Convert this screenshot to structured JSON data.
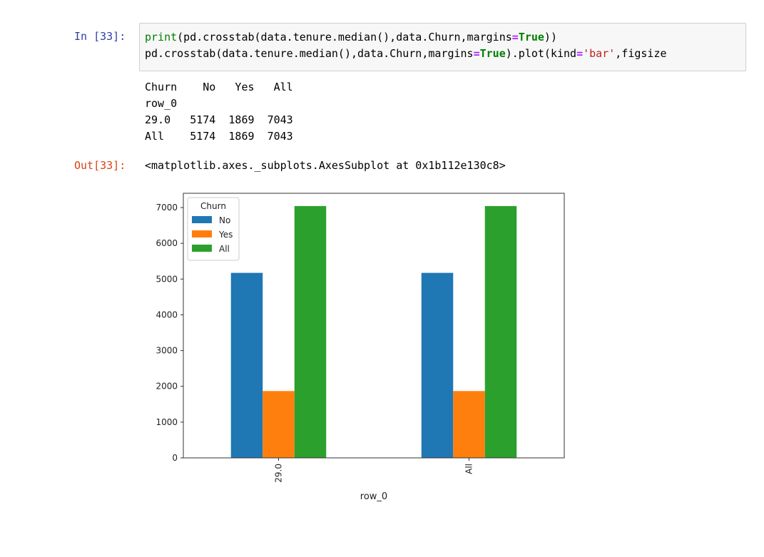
{
  "input_cell": {
    "prompt": "In [33]:",
    "code_line1": {
      "p1": "print",
      "p2": "(pd.crosstab(data.tenure.median(),data.Churn,margins",
      "p3": "=",
      "p4": "True",
      "p5": "))"
    },
    "code_line2": {
      "p1": "pd.crosstab(data.tenure.median(),data.Churn,margins",
      "p2": "=",
      "p3": "True",
      "p4": ").plot(kind",
      "p5": "=",
      "p6": "'bar'",
      "p7": ",figsize"
    }
  },
  "stdout": {
    "line1": "Churn    No   Yes   All",
    "line2": "row_0",
    "line3": "29.0   5174  1869  7043",
    "line4": "All    5174  1869  7043"
  },
  "output_cell": {
    "prompt": "Out[33]:",
    "repr": "<matplotlib.axes._subplots.AxesSubplot at 0x1b112e130c8>"
  },
  "chart_data": {
    "type": "bar",
    "categories": [
      "29.0",
      "All"
    ],
    "series": [
      {
        "name": "No",
        "values": [
          5174,
          5174
        ],
        "color": "#1f77b4"
      },
      {
        "name": "Yes",
        "values": [
          1869,
          1869
        ],
        "color": "#ff7f0e"
      },
      {
        "name": "All",
        "values": [
          7043,
          7043
        ],
        "color": "#2ca02c"
      }
    ],
    "xlabel": "row_0",
    "ylabel": "",
    "ylim": [
      0,
      7400
    ],
    "yticks": [
      0,
      1000,
      2000,
      3000,
      4000,
      5000,
      6000,
      7000
    ],
    "legend_title": "Churn",
    "legend_position": "top-left",
    "grid": false
  }
}
